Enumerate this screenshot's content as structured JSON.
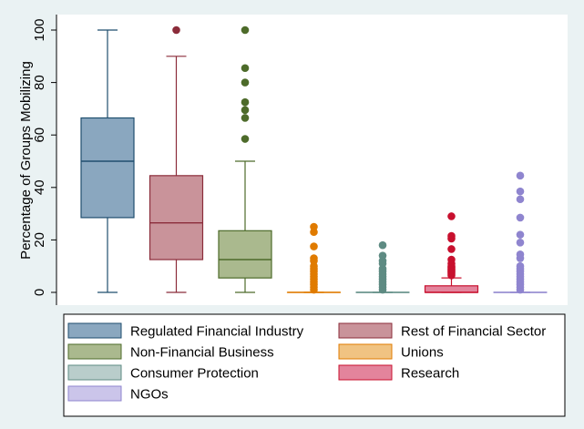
{
  "chart_data": {
    "type": "box",
    "title": "",
    "xlabel": "",
    "ylabel": "Percentage of Groups Mobilizing",
    "ylim": [
      0,
      100
    ],
    "yticks": [
      0,
      20,
      40,
      60,
      80,
      100
    ],
    "grid": false,
    "legend_position": "bottom",
    "series": [
      {
        "name": "Regulated Financial Industry",
        "fill": "#8aa7bf",
        "stroke": "#1f4e6e",
        "whisker_low": 0,
        "q1": 28.5,
        "median": 50,
        "q3": 66.5,
        "whisker_high": 100,
        "outliers": []
      },
      {
        "name": "Rest of Financial Sector",
        "fill": "#c9939a",
        "stroke": "#8b2c3a",
        "whisker_low": 0,
        "q1": 12.5,
        "median": 26.5,
        "q3": 44.5,
        "whisker_high": 90,
        "outliers": [
          100
        ]
      },
      {
        "name": "Non-Financial Business",
        "fill": "#aab98e",
        "stroke": "#4d6b2a",
        "whisker_low": 0,
        "q1": 5.5,
        "median": 12.5,
        "q3": 23.5,
        "whisker_high": 50,
        "outliers": [
          58.5,
          66.5,
          69.5,
          72.5,
          80,
          85.5,
          100
        ]
      },
      {
        "name": "Unions",
        "fill": "#f0c382",
        "stroke": "#e07b00",
        "whisker_low": 0,
        "q1": 0,
        "median": 0,
        "q3": 0,
        "whisker_high": 0,
        "outliers": [
          1,
          2,
          3,
          4,
          5,
          6,
          7,
          8,
          9,
          10,
          12,
          13,
          17.5,
          23,
          25
        ]
      },
      {
        "name": "Consumer Protection",
        "fill": "#b9cdcb",
        "stroke": "#5e8b83",
        "whisker_low": 0,
        "q1": 0,
        "median": 0,
        "q3": 0,
        "whisker_high": 0,
        "outliers": [
          1,
          2,
          3,
          4,
          5,
          6,
          7,
          8,
          9,
          11,
          12,
          14,
          18
        ]
      },
      {
        "name": "Research",
        "fill": "#e3849c",
        "stroke": "#c8102e",
        "whisker_low": 0,
        "q1": 0,
        "median": 0,
        "q3": 2.5,
        "whisker_high": 5.5,
        "outliers": [
          6.5,
          7,
          7.5,
          8,
          8.5,
          9,
          9.5,
          10,
          11,
          12.5,
          16.5,
          20.5,
          21.5,
          29
        ]
      },
      {
        "name": "NGOs",
        "fill": "#cbc5ea",
        "stroke": "#8f85cf",
        "whisker_low": 0,
        "q1": 0,
        "median": 0,
        "q3": 0,
        "whisker_high": 0,
        "outliers": [
          1,
          2,
          3,
          4,
          5,
          6,
          7,
          8,
          9,
          10,
          13,
          14.5,
          19,
          22,
          28.5,
          35.5,
          38.5,
          44.5
        ]
      }
    ]
  }
}
